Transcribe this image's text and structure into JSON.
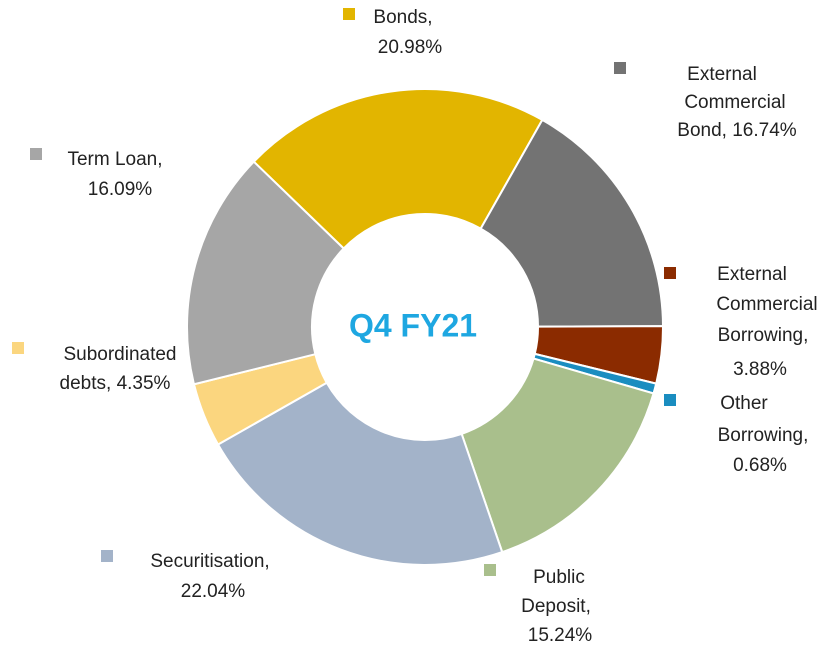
{
  "chart_data": {
    "type": "donut",
    "title": "Q4 FY21",
    "categories": [
      "Bonds,",
      "External Commercial Bond,",
      "External Commercial Borrowing,",
      "Other Borrowing,",
      "Public Deposit,",
      "Securitisation,",
      "Subordinated debts,",
      "Term Loan,"
    ],
    "values": [
      20.98,
      16.74,
      3.88,
      0.68,
      15.24,
      22.04,
      4.35,
      16.09
    ],
    "value_labels": [
      "20.98%",
      "16.74%",
      "3.88%",
      "0.68%",
      "15.24%",
      "22.04%",
      "4.35%",
      "16.09%"
    ],
    "colors": [
      "#e2b500",
      "#737373",
      "#8b2b00",
      "#1a8dc0",
      "#a9bf8c",
      "#a3b3c9",
      "#fbd67f",
      "#a6a6a6"
    ]
  }
}
